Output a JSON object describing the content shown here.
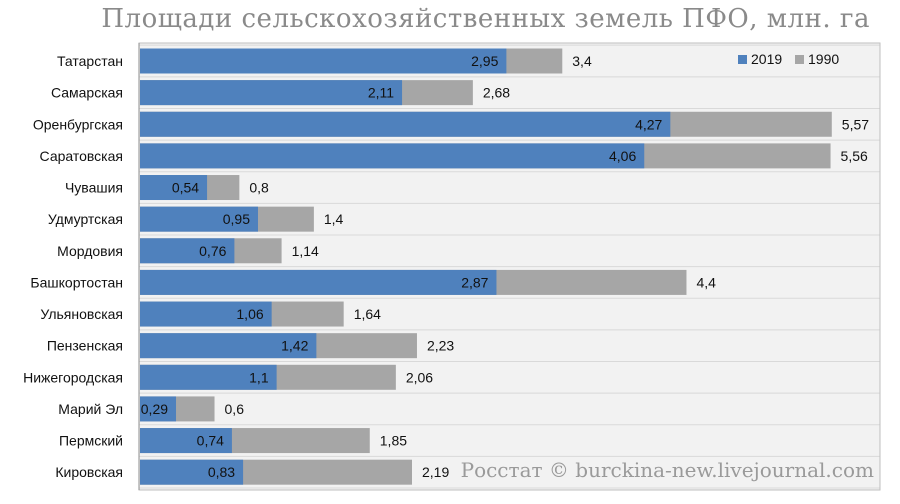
{
  "title": "Площади сельскохозяйственных земель ПФО, млн. га",
  "watermark": "Росстат © burckina-new.livejournal.com",
  "colors": {
    "s2019": "#4f81bd",
    "s1990": "#a6a6a6",
    "plot_bg": "#f2f2f2",
    "grid": "#d9d9d9"
  },
  "chart_data": {
    "type": "bar",
    "orientation": "horizontal",
    "overlap": true,
    "title": "Площади сельскохозяйственных земель ПФО, млн. га",
    "categories": [
      "Татарстан",
      "Самарская",
      "Оренбургская",
      "Саратовская",
      "Чувашия",
      "Удмуртская",
      "Мордовия",
      "Башкортостан",
      "Ульяновская",
      "Пензенская",
      "Нижегородская",
      "Марий Эл",
      "Пермский",
      "Кировская"
    ],
    "series": [
      {
        "name": "2019",
        "values": [
          2.95,
          2.11,
          4.27,
          4.06,
          0.54,
          0.95,
          0.76,
          2.87,
          1.06,
          1.42,
          1.1,
          0.29,
          0.74,
          0.83
        ],
        "labels": [
          "2,95",
          "2,11",
          "4,27",
          "4,06",
          "0,54",
          "0,95",
          "0,76",
          "2,87",
          "1,06",
          "1,42",
          "1,1",
          "0,29",
          "0,74",
          "0,83"
        ]
      },
      {
        "name": "1990",
        "values": [
          3.4,
          2.68,
          5.57,
          5.56,
          0.8,
          1.4,
          1.14,
          4.4,
          1.64,
          2.23,
          2.06,
          0.6,
          1.85,
          2.19
        ],
        "labels": [
          "3,4",
          "2,68",
          "5,57",
          "5,56",
          "0,8",
          "1,4",
          "1,14",
          "4,4",
          "1,64",
          "2,23",
          "2,06",
          "0,6",
          "1,85",
          "2,19"
        ]
      }
    ],
    "xlim": [
      0,
      6
    ],
    "legend": "top-right",
    "grid": true
  }
}
